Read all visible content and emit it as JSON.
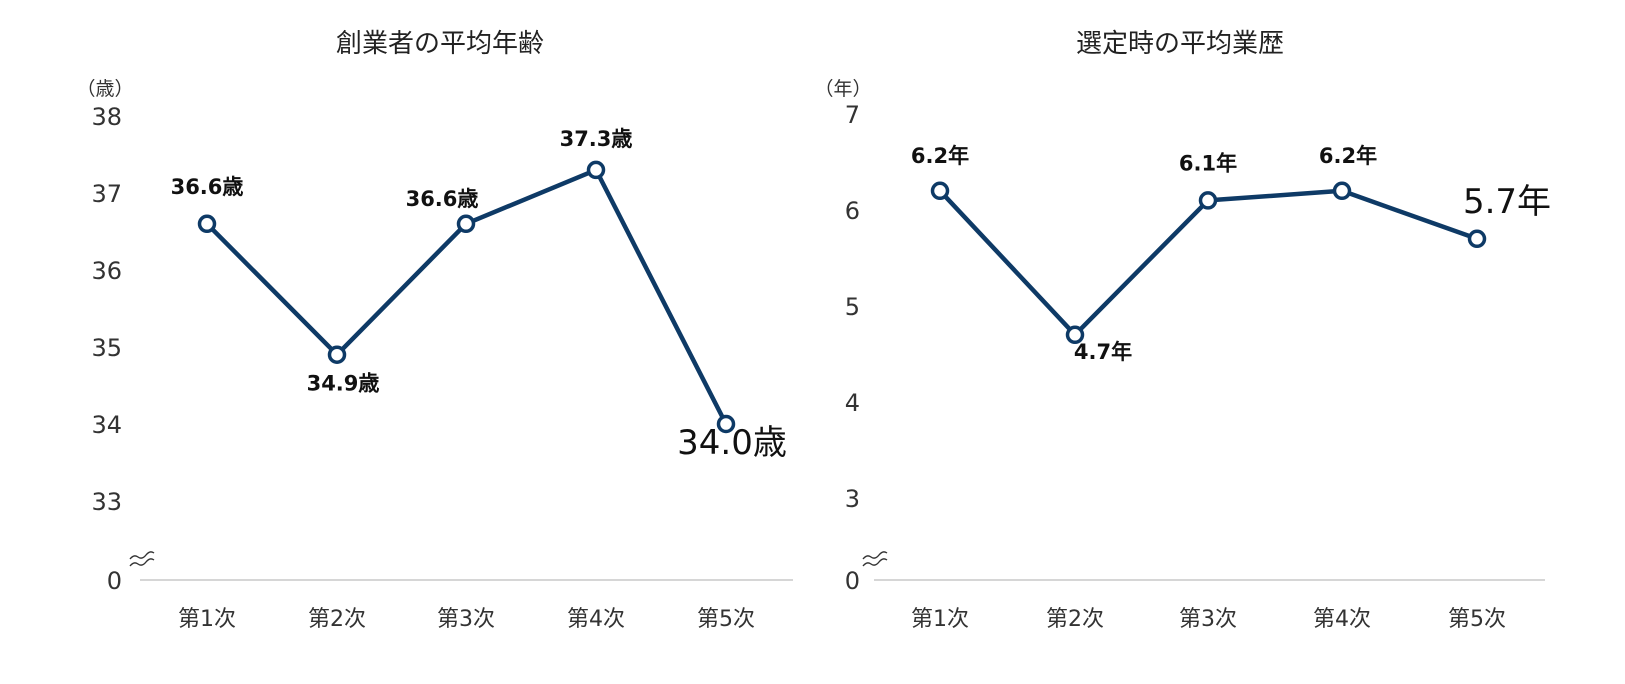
{
  "chart_data": [
    {
      "type": "line",
      "title": "創業者の平均年齢",
      "unit_label": "（歳）",
      "categories": [
        "第1次",
        "第2次",
        "第3次",
        "第4次",
        "第5次"
      ],
      "series": [
        {
          "values": [
            36.6,
            34.9,
            36.6,
            37.3,
            34.0
          ]
        }
      ],
      "data_labels": [
        "36.6歳",
        "34.9歳",
        "36.6歳",
        "37.3歳",
        "34.0歳"
      ],
      "y_ticks": [
        "0",
        "33",
        "34",
        "35",
        "36",
        "37",
        "38"
      ],
      "ylim": [
        33,
        38
      ],
      "axis_break": true,
      "highlight_last": true,
      "line_color": "#0e3a66"
    },
    {
      "type": "line",
      "title": "選定時の平均業歴",
      "unit_label": "（年）",
      "categories": [
        "第1次",
        "第2次",
        "第3次",
        "第4次",
        "第5次"
      ],
      "series": [
        {
          "values": [
            6.2,
            4.7,
            6.1,
            6.2,
            5.7
          ]
        }
      ],
      "data_labels": [
        "6.2年",
        "4.7年",
        "6.1年",
        "6.2年",
        "5.7年"
      ],
      "y_ticks": [
        "0",
        "3",
        "4",
        "5",
        "6",
        "7"
      ],
      "ylim": [
        3,
        7
      ],
      "axis_break": true,
      "highlight_last": true,
      "line_color": "#0e3a66"
    }
  ]
}
